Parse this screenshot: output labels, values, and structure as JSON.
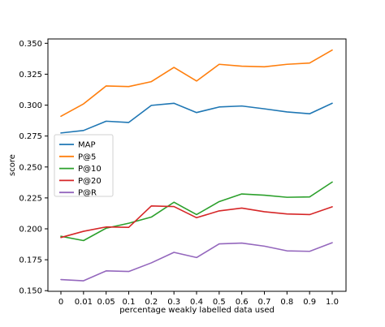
{
  "chart_data": {
    "type": "line",
    "categories": [
      "0",
      "0.01",
      "0.05",
      "0.1",
      "0.2",
      "0.3",
      "0.4",
      "0.5",
      "0.6",
      "0.7",
      "0.8",
      "0.9",
      "1.0"
    ],
    "series": [
      {
        "name": "MAP",
        "color": "#1f77b4",
        "values": [
          0.2775,
          0.2795,
          0.287,
          0.286,
          0.2998,
          0.3015,
          0.294,
          0.2985,
          0.2993,
          0.297,
          0.2945,
          0.293,
          0.3015
        ]
      },
      {
        "name": "P@5",
        "color": "#ff7f0e",
        "values": [
          0.291,
          0.301,
          0.3155,
          0.315,
          0.319,
          0.3305,
          0.3195,
          0.333,
          0.3315,
          0.331,
          0.333,
          0.334,
          0.3445
        ]
      },
      {
        "name": "P@10",
        "color": "#2ca02c",
        "values": [
          0.194,
          0.1905,
          0.2005,
          0.2045,
          0.2095,
          0.2215,
          0.2115,
          0.222,
          0.2282,
          0.2272,
          0.2255,
          0.2258,
          0.2378
        ]
      },
      {
        "name": "P@20",
        "color": "#d62728",
        "values": [
          0.193,
          0.198,
          0.2015,
          0.2012,
          0.2185,
          0.218,
          0.209,
          0.2145,
          0.2168,
          0.2138,
          0.212,
          0.2115,
          0.2178
        ]
      },
      {
        "name": "P@R",
        "color": "#9467bd",
        "values": [
          0.159,
          0.158,
          0.166,
          0.1655,
          0.1725,
          0.181,
          0.1768,
          0.1878,
          0.1885,
          0.186,
          0.1822,
          0.1818,
          0.1888
        ]
      }
    ],
    "xlabel": "percentage weakly labelled data used",
    "ylabel": "score",
    "ylim": [
      0.1495,
      0.3535
    ],
    "yticks": [
      0.15,
      0.175,
      0.2,
      0.225,
      0.25,
      0.275,
      0.3,
      0.325,
      0.35
    ],
    "ytick_labels": [
      "0.150",
      "0.175",
      "0.200",
      "0.225",
      "0.250",
      "0.275",
      "0.300",
      "0.325",
      "0.350"
    ],
    "grid": false,
    "legend_position": "center-left"
  }
}
